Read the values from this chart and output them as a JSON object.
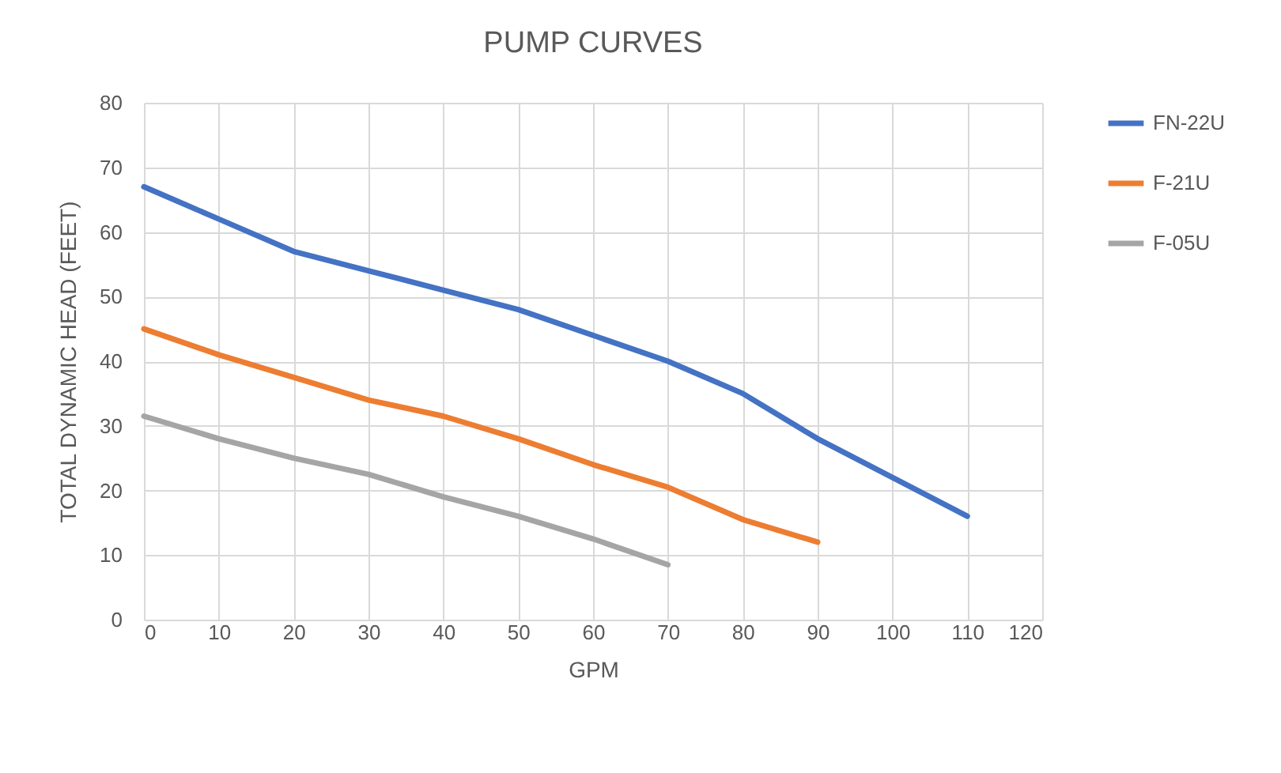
{
  "chart_data": {
    "type": "line",
    "title": "PUMP CURVES",
    "xlabel": "GPM",
    "ylabel": "TOTAL DYNAMIC HEAD (FEET)",
    "x": [
      0,
      10,
      20,
      30,
      40,
      50,
      60,
      70,
      80,
      90,
      100,
      110
    ],
    "series": [
      {
        "name": "FN-22U",
        "color": "#4472c4",
        "values": [
          67,
          62,
          57,
          54,
          51,
          48,
          44,
          40,
          35,
          28,
          22,
          16
        ]
      },
      {
        "name": "F-21U",
        "color": "#ed7d31",
        "values": [
          45,
          41,
          37.5,
          34,
          31.5,
          28,
          24,
          20.5,
          15.5,
          12,
          null,
          null
        ]
      },
      {
        "name": "F-05U",
        "color": "#a5a5a5",
        "values": [
          31.5,
          28,
          25,
          22.5,
          19,
          16,
          12.5,
          8.5,
          null,
          null,
          null,
          null
        ]
      }
    ],
    "xlim": [
      0,
      120
    ],
    "xticks": [
      0,
      10,
      20,
      30,
      40,
      50,
      60,
      70,
      80,
      90,
      100,
      110,
      120
    ],
    "ylim": [
      0,
      80
    ],
    "yticks": [
      0,
      10,
      20,
      30,
      40,
      50,
      60,
      70,
      80
    ],
    "grid": true,
    "legend": "right",
    "marker": "none",
    "line_style": "solid"
  }
}
